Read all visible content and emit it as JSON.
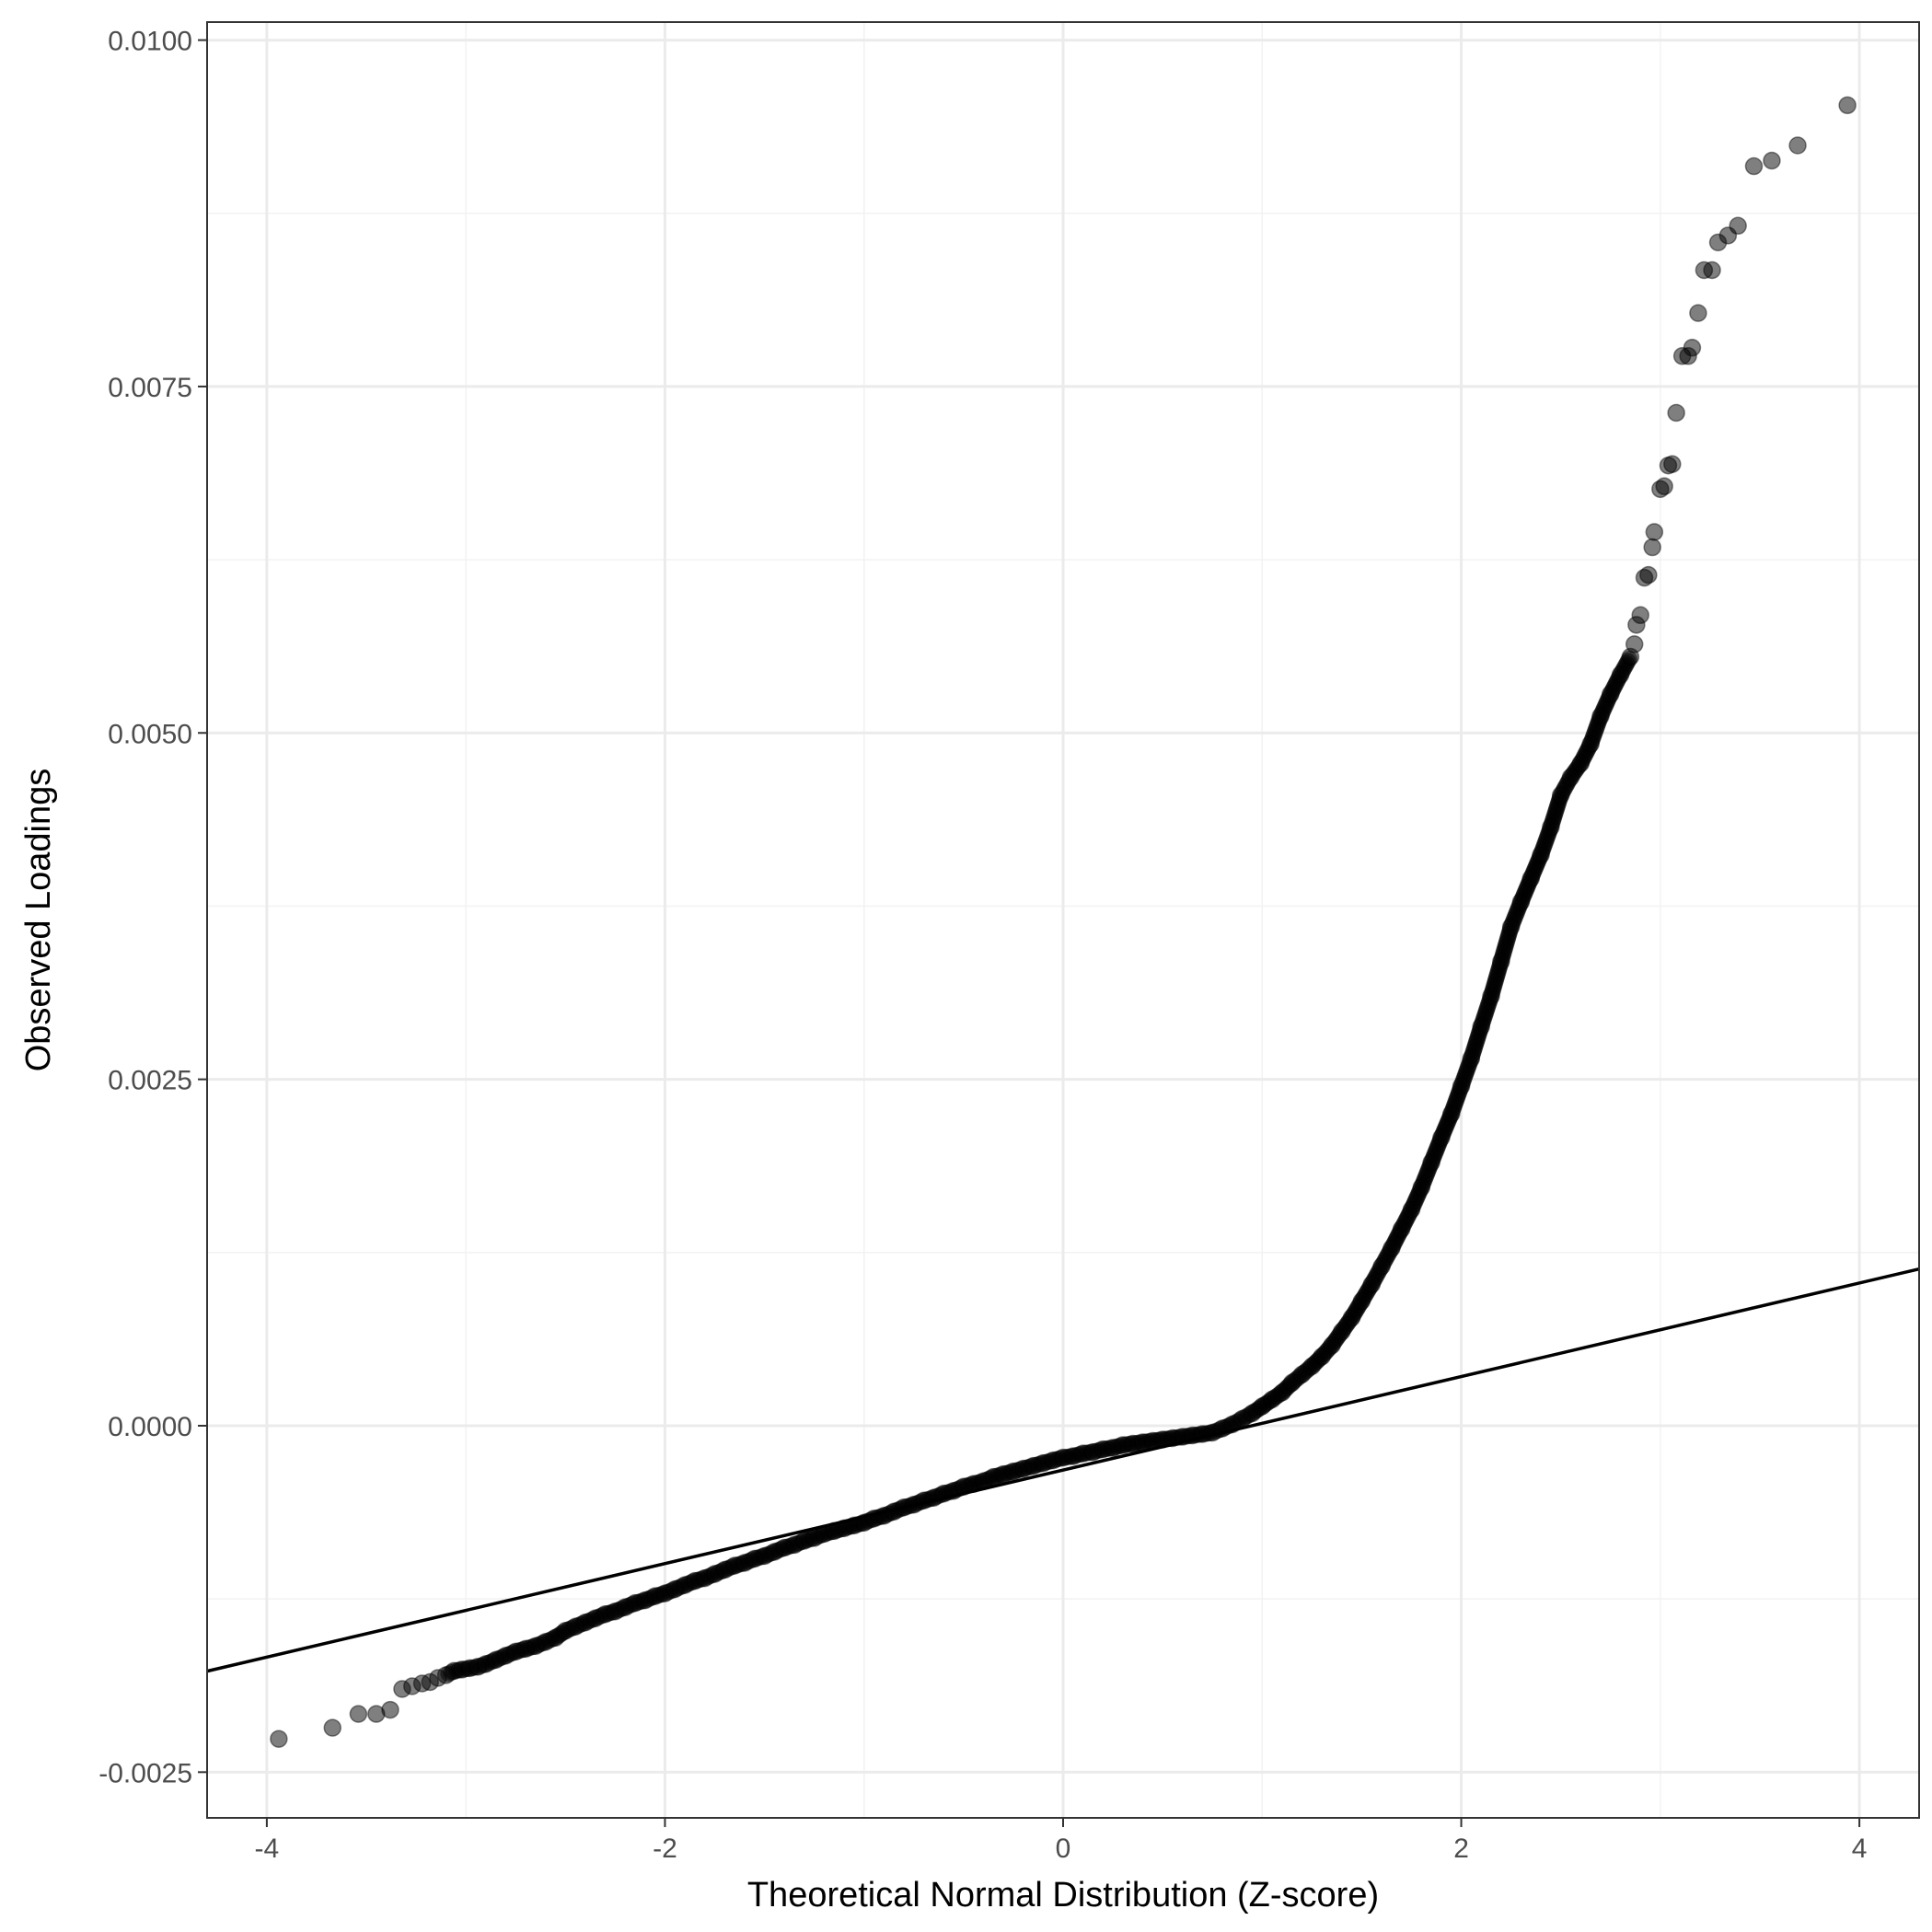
{
  "chart_data": {
    "type": "scatter",
    "title": "",
    "xlabel": "Theoretical Normal Distribution (Z-score)",
    "ylabel": "Observed Loadings",
    "xlim": [
      -4.3,
      4.3
    ],
    "ylim": [
      -0.00283,
      0.01013
    ],
    "x_major_ticks": [
      -4,
      -2,
      0,
      2,
      4
    ],
    "x_tick_labels": [
      "-4",
      "-2",
      "0",
      "2",
      "4"
    ],
    "x_minor_ticks": [
      -3,
      -1,
      1,
      3
    ],
    "y_major_ticks": [
      -0.0025,
      0.0,
      0.0025,
      0.005,
      0.0075,
      0.01
    ],
    "y_tick_labels": [
      "-0.0025",
      "0.0000",
      "0.0025",
      "0.0050",
      "0.0075",
      "0.0100"
    ],
    "y_minor_ticks": [
      -0.00125,
      0.00125,
      0.00375,
      0.00625,
      0.00875
    ],
    "grid": true,
    "point_color": "#000000",
    "point_opacity": 0.5,
    "line_color": "#000000",
    "reference_line": {
      "intercept": -0.00032,
      "slope": 0.0003375
    },
    "series": [
      {
        "values": [
          [
            -3.94,
            -0.00226
          ],
          [
            -3.67,
            -0.00218
          ],
          [
            -3.54,
            -0.00208
          ],
          [
            -3.45,
            -0.00208
          ],
          [
            -3.38,
            -0.00205
          ],
          [
            -3.32,
            -0.0019
          ],
          [
            -3.27,
            -0.00188
          ],
          [
            -3.22,
            -0.00186
          ],
          [
            -3.18,
            -0.00185
          ],
          [
            -3.14,
            -0.00182
          ],
          [
            -3.1,
            -0.0018
          ],
          [
            -3.06,
            -0.00177
          ],
          [
            -3.02,
            -0.00176
          ],
          [
            -2.98,
            -0.00175
          ],
          [
            -2.94,
            -0.00174
          ],
          [
            -2.9,
            -0.00172
          ],
          [
            -2.85,
            -0.00169
          ],
          [
            -2.8,
            -0.00166
          ],
          [
            -2.75,
            -0.00163
          ],
          [
            -2.7,
            -0.00161
          ],
          [
            -2.65,
            -0.00159
          ],
          [
            -2.6,
            -0.00156
          ],
          [
            -2.55,
            -0.00153
          ],
          [
            -2.5,
            -0.00148
          ],
          [
            -2.45,
            -0.00145
          ],
          [
            -2.4,
            -0.00142
          ],
          [
            -2.35,
            -0.00139
          ],
          [
            -2.3,
            -0.00136
          ],
          [
            -2.25,
            -0.00134
          ],
          [
            -2.2,
            -0.00131
          ],
          [
            -2.15,
            -0.00128
          ],
          [
            -2.1,
            -0.00126
          ],
          [
            -2.05,
            -0.00123
          ],
          [
            -2.0,
            -0.00121
          ],
          [
            -1.95,
            -0.00118
          ],
          [
            -1.9,
            -0.00115
          ],
          [
            -1.85,
            -0.00112
          ],
          [
            -1.8,
            -0.0011
          ],
          [
            -1.75,
            -0.00107
          ],
          [
            -1.7,
            -0.00104
          ],
          [
            -1.65,
            -0.00101
          ],
          [
            -1.6,
            -0.00099
          ],
          [
            -1.55,
            -0.00096
          ],
          [
            -1.5,
            -0.00094
          ],
          [
            -1.45,
            -0.00091
          ],
          [
            -1.4,
            -0.00088
          ],
          [
            -1.35,
            -0.00086
          ],
          [
            -1.3,
            -0.00083
          ],
          [
            -1.25,
            -0.00081
          ],
          [
            -1.2,
            -0.00078
          ],
          [
            -1.15,
            -0.00076
          ],
          [
            -1.1,
            -0.00074
          ],
          [
            -1.05,
            -0.00072
          ],
          [
            -1.0,
            -0.0007
          ],
          [
            -0.95,
            -0.00067
          ],
          [
            -0.9,
            -0.00065
          ],
          [
            -0.85,
            -0.00062
          ],
          [
            -0.8,
            -0.00059
          ],
          [
            -0.75,
            -0.00057
          ],
          [
            -0.7,
            -0.00054
          ],
          [
            -0.65,
            -0.00052
          ],
          [
            -0.6,
            -0.00049
          ],
          [
            -0.55,
            -0.00047
          ],
          [
            -0.5,
            -0.00044
          ],
          [
            -0.45,
            -0.00042
          ],
          [
            -0.4,
            -0.0004
          ],
          [
            -0.35,
            -0.00037
          ],
          [
            -0.3,
            -0.00035
          ],
          [
            -0.25,
            -0.00033
          ],
          [
            -0.2,
            -0.00031
          ],
          [
            -0.15,
            -0.00029
          ],
          [
            -0.1,
            -0.00027
          ],
          [
            -0.05,
            -0.00025
          ],
          [
            0.0,
            -0.00023
          ],
          [
            0.05,
            -0.00022
          ],
          [
            0.1,
            -0.0002
          ],
          [
            0.15,
            -0.00019
          ],
          [
            0.2,
            -0.00017
          ],
          [
            0.25,
            -0.00016
          ],
          [
            0.3,
            -0.00014
          ],
          [
            0.35,
            -0.00013
          ],
          [
            0.4,
            -0.00012
          ],
          [
            0.45,
            -0.00011
          ],
          [
            0.5,
            -0.0001
          ],
          [
            0.55,
            -9e-05
          ],
          [
            0.6,
            -8e-05
          ],
          [
            0.65,
            -7e-05
          ],
          [
            0.7,
            -6e-05
          ],
          [
            0.75,
            -5e-05
          ],
          [
            0.8,
            -2e-05
          ],
          [
            0.85,
            1e-05
          ],
          [
            0.9,
            5e-05
          ],
          [
            0.95,
            9e-05
          ],
          [
            1.0,
            0.00014
          ],
          [
            1.05,
            0.00019
          ],
          [
            1.1,
            0.00024
          ],
          [
            1.15,
            0.00031
          ],
          [
            1.2,
            0.00037
          ],
          [
            1.25,
            0.00043
          ],
          [
            1.3,
            0.0005
          ],
          [
            1.35,
            0.00058
          ],
          [
            1.4,
            0.00068
          ],
          [
            1.45,
            0.00078
          ],
          [
            1.5,
            0.0009
          ],
          [
            1.55,
            0.00102
          ],
          [
            1.6,
            0.00115
          ],
          [
            1.65,
            0.00128
          ],
          [
            1.7,
            0.00142
          ],
          [
            1.75,
            0.00156
          ],
          [
            1.8,
            0.00172
          ],
          [
            1.85,
            0.0019
          ],
          [
            1.9,
            0.00208
          ],
          [
            1.95,
            0.00225
          ],
          [
            2.0,
            0.00245
          ],
          [
            2.05,
            0.00265
          ],
          [
            2.1,
            0.00288
          ],
          [
            2.15,
            0.0031
          ],
          [
            2.2,
            0.00335
          ],
          [
            2.25,
            0.0036
          ],
          [
            2.3,
            0.00378
          ],
          [
            2.35,
            0.00395
          ],
          [
            2.4,
            0.00412
          ],
          [
            2.45,
            0.00432
          ],
          [
            2.5,
            0.00455
          ],
          [
            2.55,
            0.00468
          ],
          [
            2.6,
            0.00478
          ],
          [
            2.65,
            0.00492
          ],
          [
            2.7,
            0.00512
          ],
          [
            2.75,
            0.00528
          ],
          [
            2.8,
            0.00542
          ],
          [
            2.85,
            0.00555
          ],
          [
            2.87,
            0.00564
          ],
          [
            2.88,
            0.00578
          ],
          [
            2.9,
            0.00585
          ],
          [
            2.92,
            0.00612
          ],
          [
            2.94,
            0.00614
          ],
          [
            2.96,
            0.00634
          ],
          [
            2.97,
            0.00645
          ],
          [
            3.0,
            0.00676
          ],
          [
            3.02,
            0.00678
          ],
          [
            3.04,
            0.00693
          ],
          [
            3.06,
            0.00694
          ],
          [
            3.08,
            0.00731
          ],
          [
            3.11,
            0.00772
          ],
          [
            3.14,
            0.00772
          ],
          [
            3.16,
            0.00778
          ],
          [
            3.19,
            0.00803
          ],
          [
            3.22,
            0.00834
          ],
          [
            3.26,
            0.00834
          ],
          [
            3.29,
            0.00854
          ],
          [
            3.34,
            0.00859
          ],
          [
            3.39,
            0.00866
          ],
          [
            3.47,
            0.00909
          ],
          [
            3.56,
            0.00913
          ],
          [
            3.69,
            0.00924
          ],
          [
            3.94,
            0.00953
          ]
        ]
      }
    ]
  }
}
